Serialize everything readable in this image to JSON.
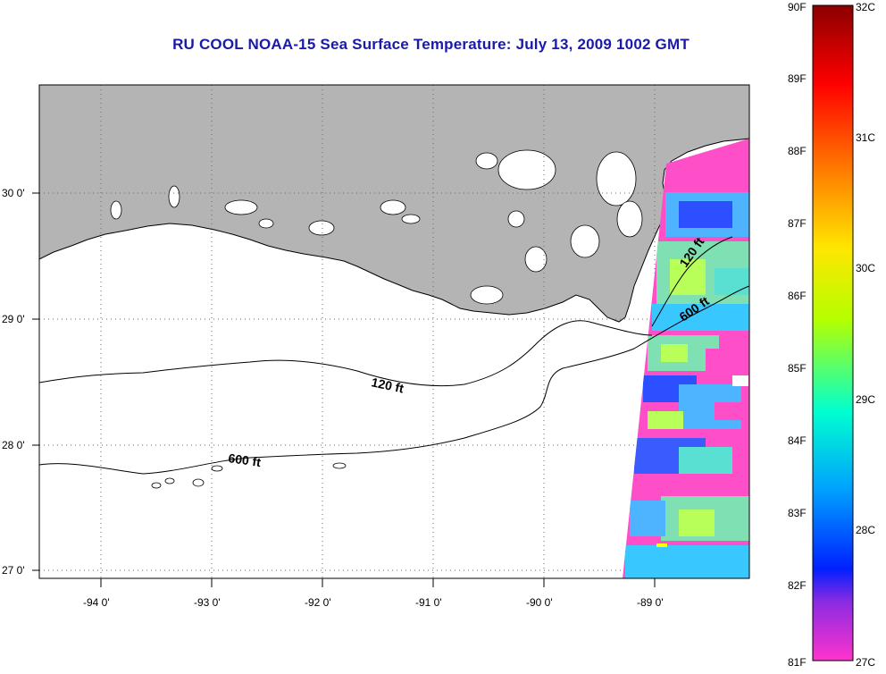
{
  "title": "RU COOL  NOAA-15  Sea Surface Temperature:  July 13, 2009 1002 GMT",
  "map": {
    "lon_labels": [
      "-94 0'",
      "-93 0'",
      "-92 0'",
      "-91 0'",
      "-90 0'",
      "-89 0'"
    ],
    "lat_labels": [
      "30 0'",
      "29 0'",
      "28 0'",
      "27 0'"
    ],
    "contours": {
      "c120_a": "120 ft",
      "c120_b": "120 ft",
      "c600_a": "600 ft",
      "c600_b": "600 ft"
    }
  },
  "colorbar": {
    "f_labels": [
      "90F",
      "89F",
      "88F",
      "87F",
      "86F",
      "85F",
      "84F",
      "83F",
      "82F",
      "81F"
    ],
    "c_labels": [
      "32C",
      "31C",
      "30C",
      "29C",
      "28C",
      "27C"
    ]
  },
  "colors": {
    "title": "#1a1aa8",
    "land": "#b4b4b4",
    "ocean": "#ffffff"
  }
}
